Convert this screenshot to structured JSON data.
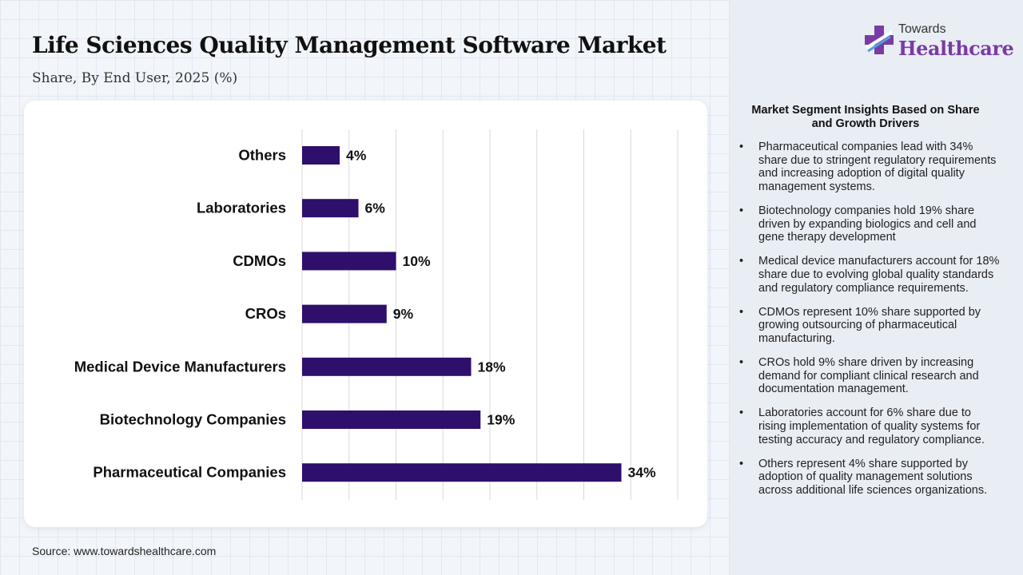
{
  "header": {
    "title": "Life Sciences Quality Management Software Market",
    "subtitle": "Share, By End User, 2025 (%)"
  },
  "logo": {
    "top_text": "Towards",
    "main_text": "Healthcare",
    "icon": "medical-cross-icon"
  },
  "source": "Source: www.towardshealthcare.com",
  "insights": {
    "title": "Market Segment Insights Based on Share and Growth Drivers",
    "items": [
      "Pharmaceutical companies lead with 34% share due to stringent regulatory requirements and increasing adoption of digital quality management systems.",
      "Biotechnology companies hold 19% share driven by expanding biologics and cell and gene therapy development",
      "Medical device manufacturers account for 18% share due to evolving global quality standards and regulatory compliance requirements.",
      "CDMOs represent 10% share supported by growing outsourcing of pharmaceutical manufacturing.",
      "CROs hold 9% share driven by increasing demand for compliant clinical research and documentation management.",
      "Laboratories account for 6% share due to rising implementation of quality systems for testing accuracy and regulatory compliance.",
      "Others represent 4% share supported by adoption of quality management solutions across additional life sciences organizations."
    ]
  },
  "colors": {
    "bar": "#2e0f6b",
    "accent": "#7a3ba6",
    "grid": "#d9d9de"
  },
  "chart_data": {
    "type": "bar",
    "orientation": "horizontal",
    "categories": [
      "Others",
      "Laboratories",
      "CDMOs",
      "CROs",
      "Medical Device Manufacturers",
      "Biotechnology Companies",
      "Pharmaceutical Companies"
    ],
    "values": [
      4,
      6,
      10,
      9,
      18,
      19,
      34
    ],
    "value_labels": [
      "4%",
      "6%",
      "10%",
      "9%",
      "18%",
      "19%",
      "34%"
    ],
    "xlim": [
      0,
      40
    ],
    "grid": true,
    "legend": "none"
  }
}
